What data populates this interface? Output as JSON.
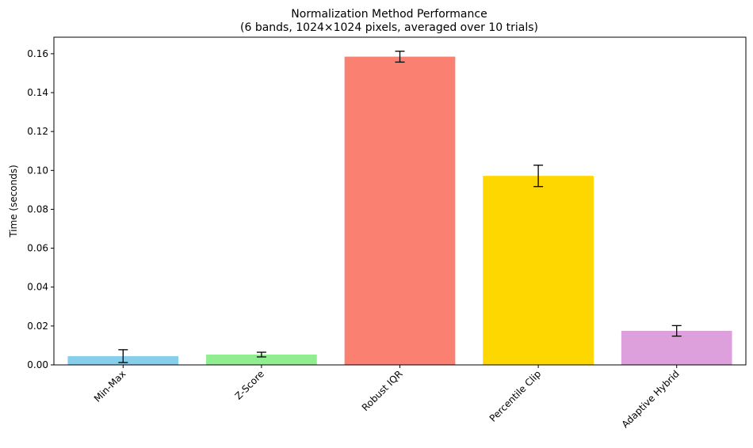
{
  "chart_data": {
    "type": "bar",
    "title_line1": "Normalization Method Performance",
    "title_line2": "(6 bands, 1024×1024 pixels, averaged over 10 trials)",
    "xlabel": "",
    "ylabel": "Time (seconds)",
    "categories": [
      "Min-Max",
      "Z-Score",
      "Robust IQR",
      "Percentile Clip",
      "Adaptive Hybrid"
    ],
    "values": [
      0.0045,
      0.0053,
      0.1585,
      0.0972,
      0.0175
    ],
    "errors": [
      0.0033,
      0.0012,
      0.0028,
      0.0055,
      0.0027
    ],
    "colors": [
      "#87ceeb",
      "#90ee90",
      "#fa8072",
      "#ffd700",
      "#dda0dd"
    ],
    "ylim": [
      0,
      0.1685
    ],
    "yticks": [
      0.0,
      0.02,
      0.04,
      0.06,
      0.08,
      0.1,
      0.12,
      0.14,
      0.16
    ],
    "ytick_labels": [
      "0.00",
      "0.02",
      "0.04",
      "0.06",
      "0.08",
      "0.10",
      "0.12",
      "0.14",
      "0.16"
    ],
    "grid": false,
    "xtick_rotation_deg": 45
  }
}
